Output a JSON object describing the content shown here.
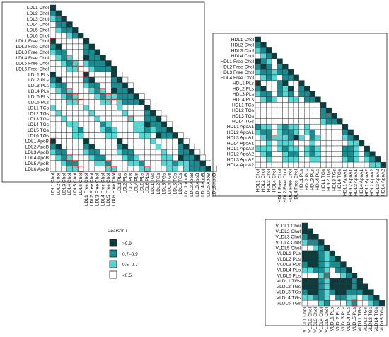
{
  "colors": {
    "gt09": "#0b3d3f",
    "p07_09": "#1a8d92",
    "p05_07": "#57d6d6",
    "lt05": "#ffffff",
    "highlight": "#e0281e",
    "grid": "#333333"
  },
  "legend": {
    "title": "Pearson r",
    "items": [
      {
        "label": ">0.9",
        "level": 3
      },
      {
        "label": "0.7–0.9",
        "level": 2
      },
      {
        "label": "0.5–0.7",
        "level": 1
      },
      {
        "label": "<0.5",
        "level": 0
      }
    ]
  },
  "chart_data": [
    {
      "type": "heatmap",
      "id": "ldl",
      "labels": [
        "LDL1 Chol",
        "LDL2 Chol",
        "LDL3 Chol",
        "LDL4 Chol",
        "LDL5 Chol",
        "LDL6 Chol",
        "LDL1 Free Chol",
        "LDL2 Free Chol",
        "LDL3 Free Chol",
        "LDL4 Free Chol",
        "LDL5 Free Chol",
        "LDL6 Free Chol",
        "LDL1 PLs",
        "LDL2 PLs",
        "LDL3 PLs",
        "LDL4 PLs",
        "LDL5 PLs",
        "LDL6 PLs",
        "LDL1 TGs",
        "LDL2 TGs",
        "LDL3 TGs",
        "LDL4 TGs",
        "LDL5 TGs",
        "LDL6 TGs",
        "LDL1 ApoB",
        "LDL2 ApoB",
        "LDL3 ApoB",
        "LDL4 ApoB",
        "LDL5 ApoB",
        "LDL6 ApoB"
      ],
      "rows": [
        "3",
        "23",
        "123",
        "0223",
        "01223",
        "000123",
        "3000003",
        "23000023",
        "122000223",
        "0121003223",
        "00121012223",
        "000110012223",
        "300000300003",
        "2300002300023",
        "12200012200223",
        "012100012103223",
        "0012100012112223",
        "00011000011012223",
        "100000100000100003",
        "0100000100000100023",
        "00100000100000100223",
        "000110000210000113223",
        "0000120001210001121223",
        "00001100001100001103223",
        "300000300000300000100003",
        "2300002300002300000100023",
        "12200012200012200000100223",
        "012100012200012100001103223",
        "0012200011200011200011211223",
        "00011000001100001100011012223"
      ],
      "highlights": [
        [
          6,
          0
        ],
        [
          9,
          3
        ],
        [
          10,
          4
        ],
        [
          11,
          5
        ],
        [
          12,
          6
        ],
        [
          15,
          3
        ],
        [
          15,
          9
        ],
        [
          16,
          4
        ],
        [
          16,
          10
        ],
        [
          17,
          5
        ],
        [
          17,
          11
        ],
        [
          20,
          14
        ],
        [
          24,
          0
        ],
        [
          27,
          3
        ],
        [
          28,
          4
        ],
        [
          28,
          10
        ],
        [
          29,
          5
        ],
        [
          29,
          11
        ],
        [
          29,
          17
        ]
      ]
    },
    {
      "type": "heatmap",
      "id": "hdl",
      "labels": [
        "HDL1 Chol",
        "HDL2 Chol",
        "HDL3 Chol",
        "HDL4 Chol",
        "HDL1 Free Chol",
        "HDL2 Free Chol",
        "HDL3 Free Chol",
        "HDL4 Free Chol",
        "HDL1 PLs",
        "HDL2 PLs",
        "HDL3 PLs",
        "HDL4 PLs",
        "HDL1 TGs",
        "HDL2 TGs",
        "HDL3 TGs",
        "HDL4 TGs",
        "HDL1 ApoA1",
        "HDL2 ApoA1",
        "HDL3 ApoA1",
        "HDL4 ApoA1",
        "HDL1 ApoA2",
        "HDL2 ApoA2",
        "HDL3 ApoA2",
        "HDL4 ApoA2"
      ],
      "rows": [
        "3",
        "23",
        "123",
        "0123",
        "32103",
        "232023",
        "1221223",
        "01210223",
        "300023003",
        "2300213023",
        "12202120223",
        "012100110223",
        "0000000000003",
        "00000000000023",
        "000000000000223",
        "0000000000001223",
        "21101211010000003",
        "122012210120000023",
        "0121112310210000123",
        "00101110001000000113",
        "111012110121000022103",
        "0120012201210000221023",
        "00100111001100001210123",
        "000000000000000000000113"
      ],
      "highlights": [
        [
          8,
          0
        ],
        [
          14,
          13
        ],
        [
          18,
          3
        ]
      ]
    },
    {
      "type": "heatmap",
      "id": "vldl",
      "labels": [
        "VLDL1 Chol",
        "VLDL2 Chol",
        "VLDL3 Chol",
        "VLDL4 Chol",
        "VLDL5 Chol",
        "VLDL1 PLs",
        "VLDL2 PLs",
        "VLDL3 PLs",
        "VLDL4 PLs",
        "VLDL5 PLs",
        "VLDL1 TGs",
        "VLDL2 TGs",
        "VLDL3 TGs",
        "VLDL4 TGs",
        "VLDL5 TGs"
      ],
      "rows": [
        "3",
        "33",
        "233",
        "1223",
        "00123",
        "333213",
        "3332123",
        "23321223",
        "112210223",
        "0001200123",
        "33321333323",
        "333213333233",
        "2332123322233",
        "11221022110123",
        "000120001200123"
      ],
      "highlights": [
        [
          9,
          4
        ],
        [
          14,
          9
        ]
      ]
    }
  ]
}
